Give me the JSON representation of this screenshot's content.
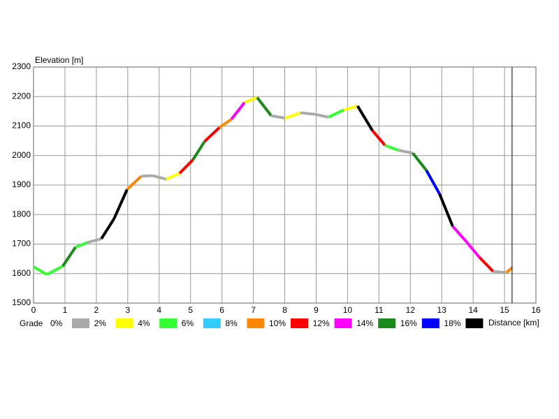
{
  "chart_data": {
    "type": "line",
    "x_label": "Distance [km]",
    "y_label": "Elevation [m]",
    "x": [
      0,
      0.42,
      0.93,
      1.34,
      1.71,
      2.16,
      2.56,
      2.98,
      3.43,
      3.78,
      4.23,
      4.65,
      5.07,
      5.45,
      5.92,
      6.3,
      6.72,
      7.12,
      7.57,
      8.01,
      8.5,
      8.95,
      9.39,
      9.88,
      10.32,
      10.79,
      11.19,
      11.62,
      12.08,
      12.51,
      12.93,
      13.35,
      13.77,
      14.2,
      14.64,
      15.06,
      15.24
    ],
    "values": [
      1623,
      1597,
      1625,
      1690,
      1705,
      1718,
      1785,
      1885,
      1930,
      1932,
      1920,
      1940,
      1985,
      2048,
      2095,
      2123,
      2180,
      2197,
      2135,
      2127,
      2145,
      2140,
      2130,
      2155,
      2168,
      2085,
      2035,
      2018,
      2008,
      1950,
      1870,
      1760,
      1710,
      1655,
      1607,
      1603,
      1620
    ],
    "segment_colors": [
      "#33ff33",
      "#33ff33",
      "#1a8a1a",
      "#33ff33",
      "#aaaaaa",
      "#000000",
      "#000000",
      "#ff8800",
      "#aaaaaa",
      "#aaaaaa",
      "#ffff00",
      "#ff0000",
      "#1a8a1a",
      "#ff0000",
      "#ff8800",
      "#ff00ff",
      "#ffff00",
      "#1a8a1a",
      "#aaaaaa",
      "#ffff00",
      "#aaaaaa",
      "#aaaaaa",
      "#33ff33",
      "#ffff00",
      "#000000",
      "#ff0000",
      "#33ff33",
      "#aaaaaa",
      "#1a8a1a",
      "#0000ff",
      "#000000",
      "#ff00ff",
      "#ff00ff",
      "#ff0000",
      "#aaaaaa",
      "#ff8800"
    ],
    "cursor_x": 15.24,
    "xlim": [
      0,
      16
    ],
    "xticks": [
      0,
      1,
      2,
      3,
      4,
      5,
      6,
      7,
      8,
      9,
      10,
      11,
      12,
      13,
      14,
      15,
      16
    ],
    "ylim": [
      1500,
      2300
    ],
    "yticks": [
      1500,
      1600,
      1700,
      1800,
      1900,
      2000,
      2100,
      2200,
      2300
    ],
    "grid": true,
    "legend": {
      "title": "Grade",
      "labels": [
        "0%",
        "2%",
        "4%",
        "6%",
        "8%",
        "10%",
        "12%",
        "14%",
        "16%",
        "18%"
      ],
      "colors": [
        "#aaaaaa",
        "#ffff00",
        "#33ff33",
        "#33ccff",
        "#ff8800",
        "#ff0000",
        "#ff00ff",
        "#1a8a1a",
        "#0000ff",
        "#000000"
      ]
    }
  }
}
